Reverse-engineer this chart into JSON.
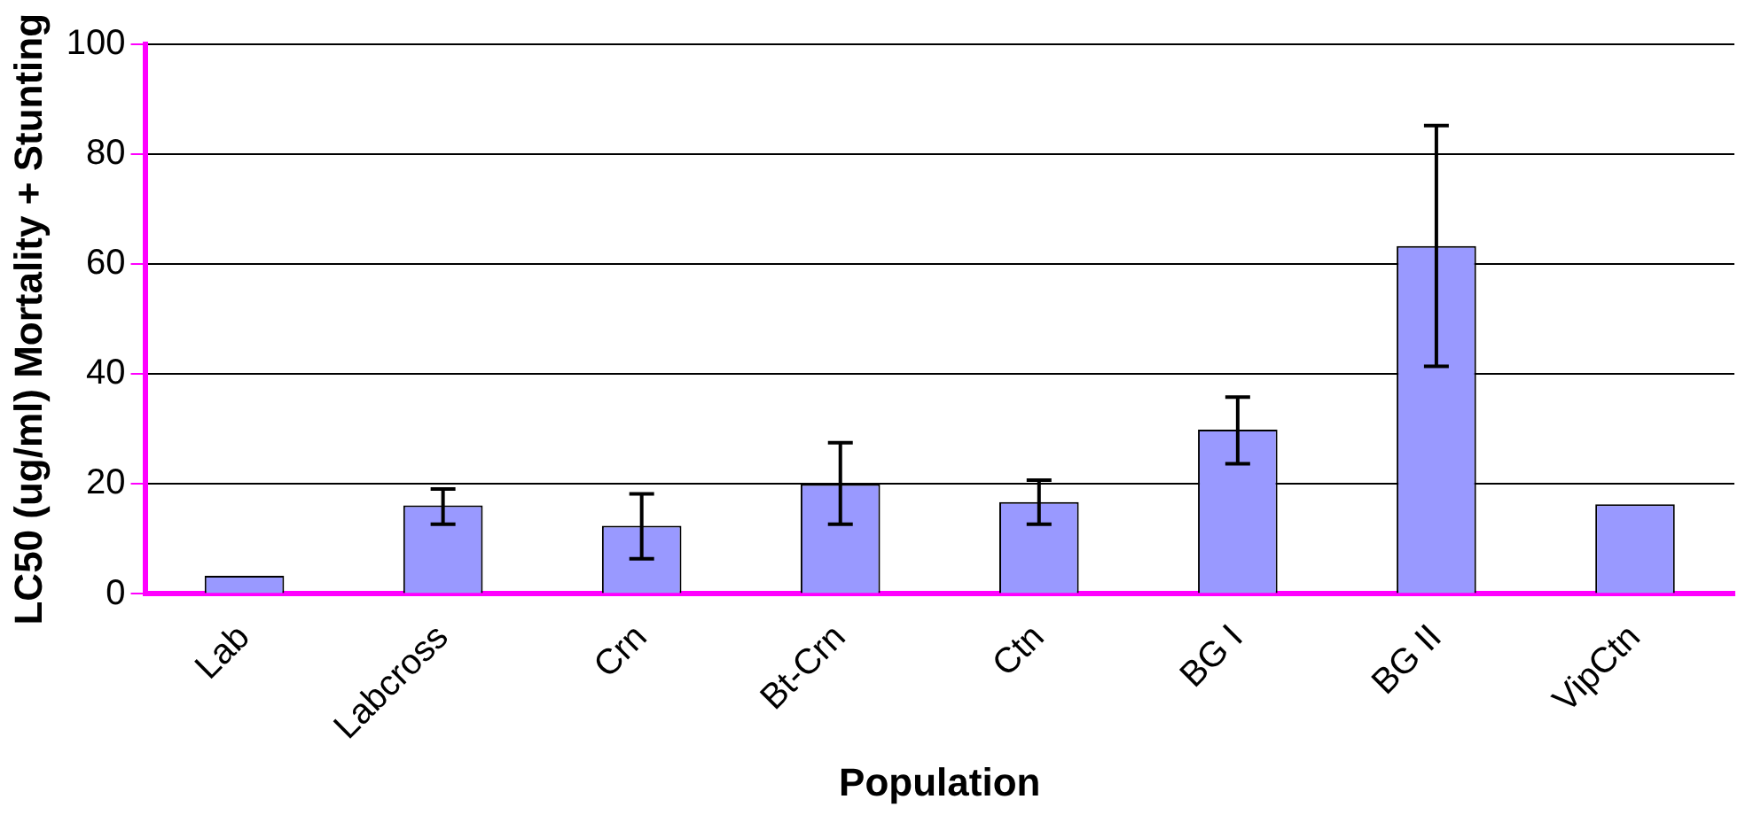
{
  "chart_data": {
    "type": "bar",
    "xlabel": "Population",
    "ylabel": "LC50 (ug/ml) Mortality + Stunting",
    "categories": [
      "Lab",
      "Labcross",
      "Crn",
      "Bt-Crn",
      "Ctn",
      "BG I",
      "BG II",
      "VipCtn"
    ],
    "values": [
      3.3,
      16.1,
      12.4,
      20,
      16.7,
      29.9,
      63.3,
      16.3
    ],
    "errors": [
      null,
      [
        12.7,
        19.1
      ],
      [
        6.4,
        18.2
      ],
      [
        12.7,
        27.5
      ],
      [
        12.7,
        20.7
      ],
      [
        23.7,
        35.8
      ],
      [
        41.4,
        85.2
      ],
      null
    ],
    "color": "#9999ff",
    "ylim": [
      0,
      100
    ],
    "yticks": [
      0,
      20,
      40,
      60,
      80,
      100
    ],
    "grid": "y",
    "legend": false
  }
}
